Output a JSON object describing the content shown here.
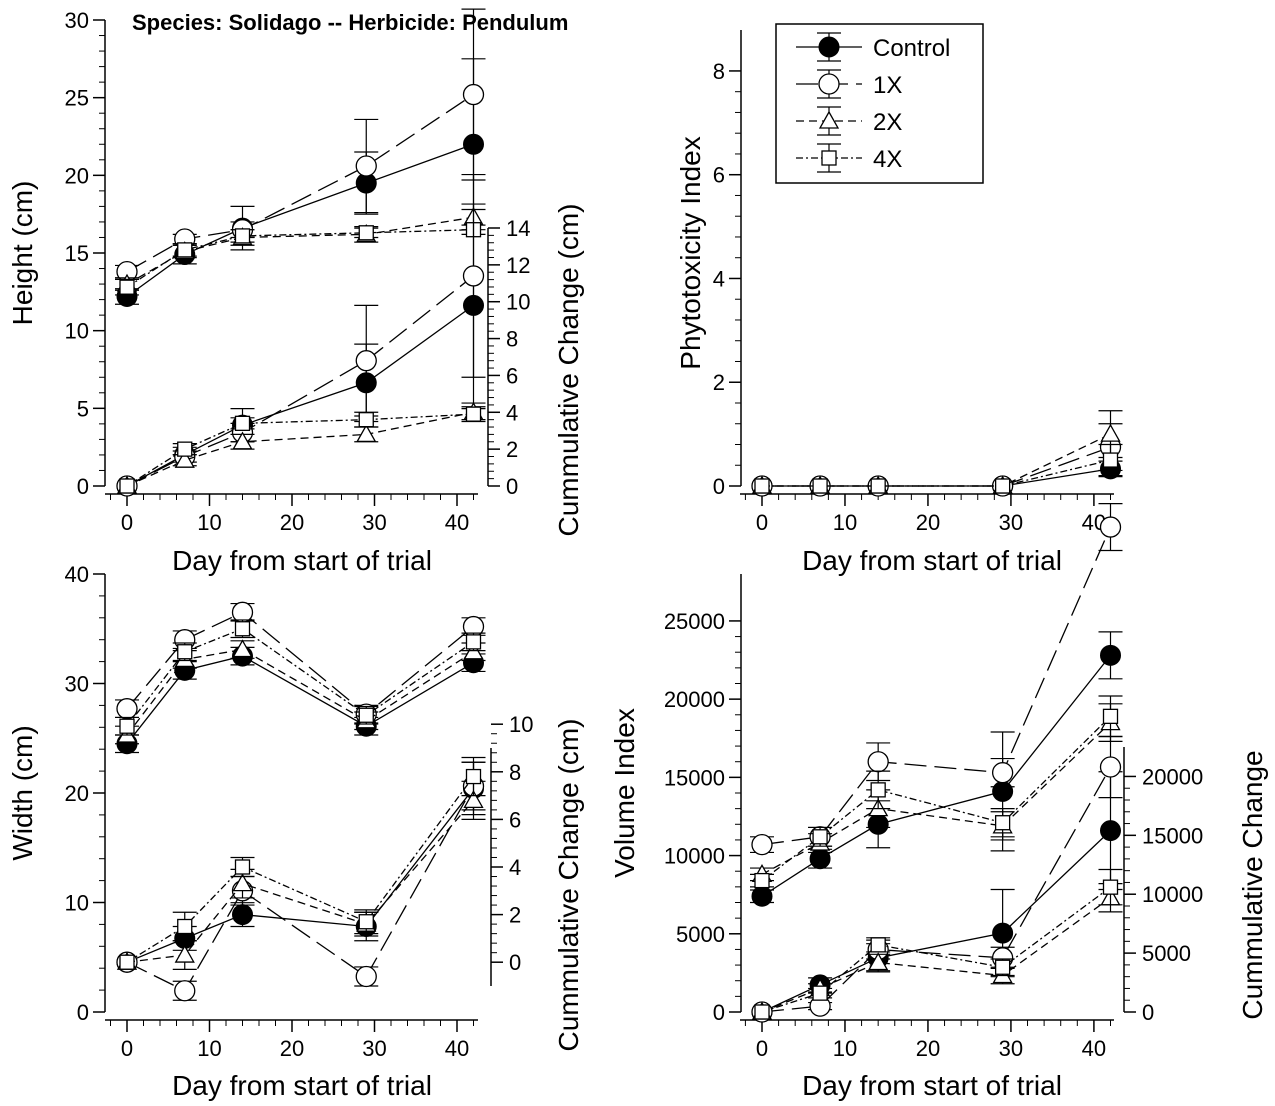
{
  "title": "Species: Solidago -- Herbicide: Pendulum",
  "legend": {
    "placement": "top-right of phytotoxicity panel",
    "entries": [
      {
        "label": "Control",
        "marker": "filled-circle",
        "dash": "solid"
      },
      {
        "label": "1X",
        "marker": "open-circle",
        "dash": "long-dash"
      },
      {
        "label": "2X",
        "marker": "open-triangle",
        "dash": "short-dash"
      },
      {
        "label": "4X",
        "marker": "open-square",
        "dash": "dash-dot"
      }
    ]
  },
  "chart_data": [
    {
      "type": "line",
      "panel": "height",
      "xlabel": "Day from start of trial",
      "ylabel": "Height (cm)",
      "y2label": "Cummulative Change (cm)",
      "xlim": [
        -3,
        44
      ],
      "ylim": [
        0,
        30
      ],
      "y2lim": [
        0,
        14
      ],
      "xticks": [
        0,
        10,
        20,
        30,
        40
      ],
      "yticks": [
        0,
        5,
        10,
        15,
        20,
        25,
        30
      ],
      "y2ticks": [
        0,
        2,
        4,
        6,
        8,
        10,
        12,
        14
      ],
      "x": [
        0,
        7,
        14,
        29,
        42
      ],
      "series": [
        {
          "name": "Control",
          "axis": "left",
          "values": [
            12.2,
            14.9,
            16.6,
            19.5,
            22.0
          ],
          "errors": [
            0.5,
            0.6,
            1.4,
            2.0,
            5.5
          ]
        },
        {
          "name": "1X",
          "axis": "left",
          "values": [
            13.8,
            15.9,
            16.5,
            20.6,
            25.2
          ],
          "errors": [
            0.4,
            0.3,
            0.5,
            3.0,
            5.5
          ]
        },
        {
          "name": "2X",
          "axis": "left",
          "values": [
            13.0,
            15.1,
            16.0,
            16.2,
            17.3
          ],
          "errors": [
            0.4,
            0.4,
            0.5,
            0.5,
            0.5
          ]
        },
        {
          "name": "4X",
          "axis": "left",
          "values": [
            12.8,
            15.2,
            16.1,
            16.3,
            16.5
          ],
          "errors": [
            0.5,
            0.4,
            0.4,
            0.3,
            0.3
          ]
        },
        {
          "name": "Control",
          "axis": "right",
          "values": [
            0,
            1.7,
            3.3,
            5.6,
            9.8
          ],
          "errors": [
            0,
            0.4,
            0.9,
            2.1,
            5.5
          ]
        },
        {
          "name": "1X",
          "axis": "right",
          "values": [
            0,
            1.6,
            2.9,
            6.8,
            11.4
          ],
          "errors": [
            0,
            0.3,
            0.5,
            3.0,
            5.5
          ]
        },
        {
          "name": "2X",
          "axis": "right",
          "values": [
            0,
            1.4,
            2.4,
            2.8,
            4.0
          ],
          "errors": [
            0,
            0.3,
            0.4,
            0.4,
            0.5
          ]
        },
        {
          "name": "4X",
          "axis": "right",
          "values": [
            0,
            2.0,
            3.4,
            3.6,
            3.9
          ],
          "errors": [
            0,
            0.3,
            0.3,
            0.4,
            0.3
          ]
        }
      ]
    },
    {
      "type": "line",
      "panel": "phytotoxicity",
      "xlabel": "Day from start of trial",
      "ylabel": "Phytotoxicity Index",
      "xlim": [
        -3,
        45
      ],
      "ylim": [
        -0.2,
        8.5
      ],
      "xticks": [
        0,
        10,
        20,
        30,
        40
      ],
      "yticks": [
        0,
        2,
        4,
        6,
        8
      ],
      "x": [
        0,
        7,
        14,
        29,
        42
      ],
      "series": [
        {
          "name": "Control",
          "values": [
            0,
            0,
            0,
            0,
            0.33
          ],
          "errors": [
            0,
            0,
            0,
            0,
            0.15
          ]
        },
        {
          "name": "1X",
          "values": [
            0,
            0,
            0,
            0,
            0.75
          ],
          "errors": [
            0,
            0,
            0,
            0,
            0.45
          ]
        },
        {
          "name": "2X",
          "values": [
            0,
            0,
            0,
            0,
            1.0
          ],
          "errors": [
            0,
            0,
            0,
            0,
            0.45
          ]
        },
        {
          "name": "4X",
          "values": [
            0,
            0,
            0,
            0,
            0.5
          ],
          "errors": [
            0,
            0,
            0,
            0,
            0.3
          ]
        }
      ]
    },
    {
      "type": "line",
      "panel": "width",
      "xlabel": "Day from start of trial",
      "ylabel": "Width (cm)",
      "y2label": "Cummulative Change (cm)",
      "xlim": [
        -3,
        44
      ],
      "ylim": [
        0,
        40
      ],
      "y2lim": [
        0,
        10
      ],
      "xticks": [
        0,
        10,
        20,
        30,
        40
      ],
      "yticks": [
        0,
        10,
        20,
        30,
        40
      ],
      "y2ticks": [
        0,
        2,
        4,
        6,
        8,
        10
      ],
      "x": [
        0,
        7,
        14,
        29,
        42
      ],
      "series": [
        {
          "name": "Control",
          "axis": "left",
          "values": [
            24.5,
            31.2,
            32.5,
            26.1,
            31.9
          ],
          "errors": [
            0.8,
            0.8,
            0.8,
            0.8,
            0.8
          ]
        },
        {
          "name": "1X",
          "axis": "left",
          "values": [
            27.7,
            34.0,
            36.5,
            27.2,
            35.2
          ],
          "errors": [
            0.8,
            0.8,
            0.8,
            0.8,
            0.8
          ]
        },
        {
          "name": "2X",
          "axis": "left",
          "values": [
            25.3,
            32.2,
            33.1,
            26.6,
            32.9
          ],
          "errors": [
            0.8,
            0.8,
            0.8,
            0.8,
            0.8
          ]
        },
        {
          "name": "4X",
          "axis": "left",
          "values": [
            26.1,
            32.9,
            35.0,
            27.1,
            33.8
          ],
          "errors": [
            0.8,
            0.8,
            0.8,
            0.8,
            0.8
          ]
        },
        {
          "name": "Control",
          "axis": "right",
          "values": [
            0,
            1.0,
            2.0,
            1.5,
            7.3
          ],
          "errors": [
            0,
            0.5,
            0.5,
            0.6,
            1.1
          ]
        },
        {
          "name": "1X",
          "axis": "right",
          "values": [
            0,
            -1.2,
            3.0,
            -0.6,
            7.4
          ],
          "errors": [
            0,
            0.4,
            0.6,
            0.4,
            1.0
          ]
        },
        {
          "name": "2X",
          "axis": "right",
          "values": [
            0,
            0.3,
            3.3,
            1.6,
            6.8
          ],
          "errors": [
            0,
            0.6,
            0.6,
            0.5,
            0.8
          ]
        },
        {
          "name": "4X",
          "axis": "right",
          "values": [
            0,
            1.5,
            4.0,
            1.7,
            7.8
          ],
          "errors": [
            0,
            0.6,
            0.4,
            0.5,
            0.8
          ]
        }
      ]
    },
    {
      "type": "line",
      "panel": "volume",
      "xlabel": "Day from start of trial",
      "ylabel": "Volume Index",
      "y2label": "Cummulative Change",
      "xlim": [
        -3,
        44
      ],
      "ylim": [
        0,
        28000
      ],
      "y2lim": [
        0,
        22000
      ],
      "xticks": [
        0,
        10,
        20,
        30,
        40
      ],
      "yticks": [
        0,
        5000,
        10000,
        15000,
        20000,
        25000
      ],
      "y2ticks": [
        0,
        5000,
        10000,
        15000,
        20000
      ],
      "x": [
        0,
        7,
        14,
        29,
        42
      ],
      "series": [
        {
          "name": "Control",
          "axis": "left",
          "values": [
            7400,
            9800,
            12000,
            14100,
            22800
          ],
          "errors": [
            400,
            600,
            1500,
            3800,
            1500
          ]
        },
        {
          "name": "1X",
          "axis": "left",
          "values": [
            10700,
            11200,
            16000,
            15300,
            31000
          ],
          "errors": [
            500,
            600,
            1200,
            900,
            1500
          ]
        },
        {
          "name": "2X",
          "axis": "left",
          "values": [
            8800,
            10800,
            13000,
            11900,
            18500
          ],
          "errors": [
            400,
            600,
            1200,
            900,
            1200
          ]
        },
        {
          "name": "4X",
          "axis": "left",
          "values": [
            8400,
            11200,
            14200,
            12100,
            18900
          ],
          "errors": [
            400,
            600,
            1200,
            900,
            1300
          ]
        },
        {
          "name": "Control",
          "axis": "right",
          "values": [
            0,
            2300,
            4600,
            6700,
            15400
          ],
          "errors": [
            0,
            600,
            1200,
            3700,
            5000
          ]
        },
        {
          "name": "1X",
          "axis": "right",
          "values": [
            0,
            500,
            5300,
            4600,
            20800
          ],
          "errors": [
            0,
            300,
            800,
            900,
            2600
          ]
        },
        {
          "name": "2X",
          "axis": "right",
          "values": [
            0,
            2000,
            4200,
            3100,
            9700
          ],
          "errors": [
            0,
            400,
            700,
            700,
            1200
          ]
        },
        {
          "name": "4X",
          "axis": "right",
          "values": [
            0,
            1600,
            5700,
            3800,
            10600
          ],
          "errors": [
            0,
            400,
            600,
            700,
            1500
          ]
        }
      ]
    }
  ]
}
